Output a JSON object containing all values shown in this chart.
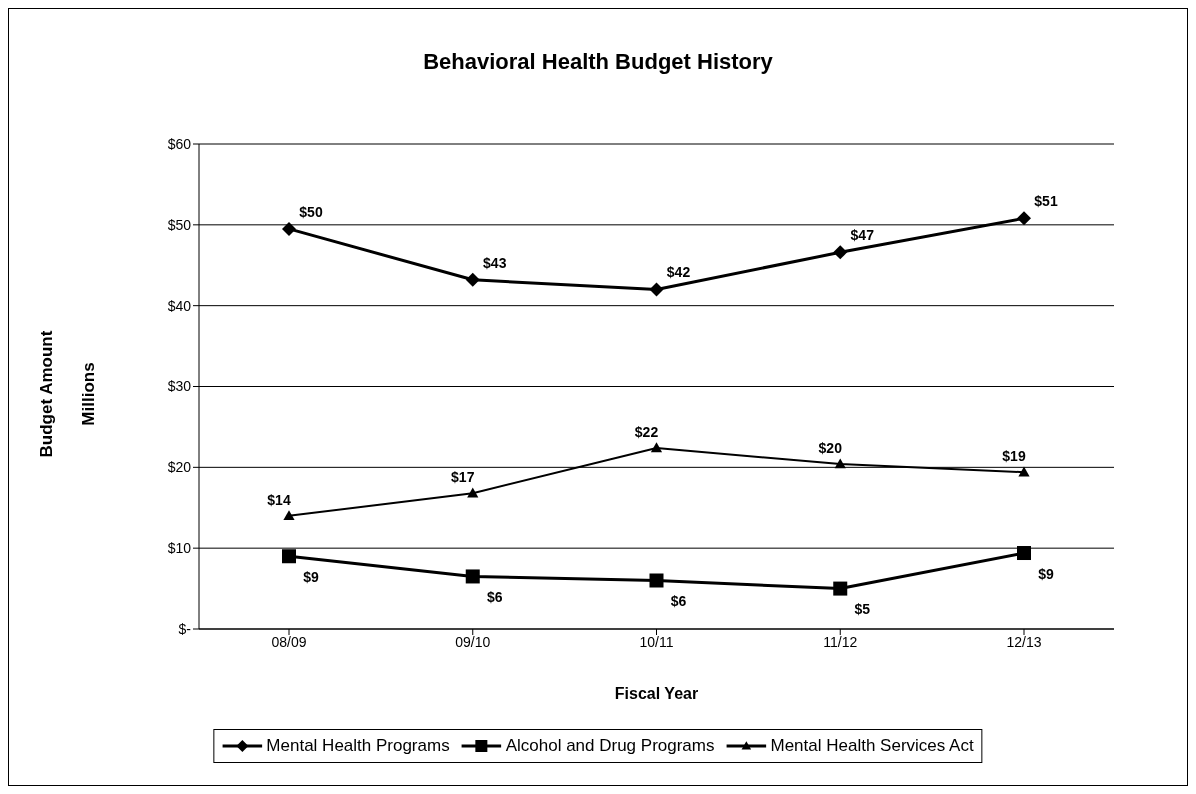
{
  "chart_data": {
    "type": "line",
    "title": "Behavioral Health Budget History",
    "xlabel": "Fiscal Year",
    "ylabel": "Budget Amount\nMillions",
    "categories": [
      "08/09",
      "09/10",
      "10/11",
      "11/12",
      "12/13"
    ],
    "series": [
      {
        "name": "Mental Health Programs",
        "color": "#000000",
        "marker": "diamond",
        "values": [
          49.5,
          43.2,
          42,
          46.6,
          50.8
        ],
        "value_labels": [
          "$50",
          "$43",
          "$42",
          "$47",
          "$51"
        ]
      },
      {
        "name": "Alcohol and Drug Programs",
        "color": "#000000",
        "marker": "square",
        "values": [
          9,
          6.5,
          6,
          5,
          9.4
        ],
        "value_labels": [
          "$9",
          "$6",
          "$6",
          "$5",
          "$9"
        ]
      },
      {
        "name": "Mental Health Services Act",
        "color": "#000000",
        "marker": "triangle",
        "values": [
          14,
          16.8,
          22.4,
          20.4,
          19.4
        ],
        "value_labels": [
          "$14",
          "$17",
          "$22",
          "$20",
          "$19"
        ]
      }
    ],
    "ylim": [
      0,
      60
    ],
    "yticks": [
      {
        "value": 0,
        "label": "$-"
      },
      {
        "value": 10,
        "label": "$10"
      },
      {
        "value": 20,
        "label": "$20"
      },
      {
        "value": 30,
        "label": "$30"
      },
      {
        "value": 40,
        "label": "$40"
      },
      {
        "value": 50,
        "label": "$50"
      },
      {
        "value": 60,
        "label": "$60"
      }
    ],
    "grid": "y",
    "legend": "bottom",
    "line_style": "solid"
  }
}
